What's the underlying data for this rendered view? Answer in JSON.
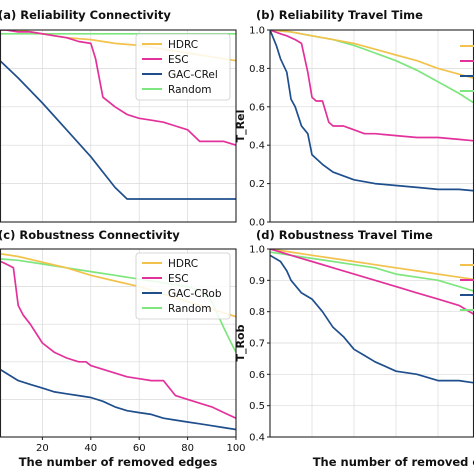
{
  "colors": {
    "HDRC": "#f2c24c",
    "ESC": "#e3319b",
    "GAC": "#1f4e8c",
    "Random": "#7ee67e"
  },
  "chart_data": [
    {
      "id": "a",
      "type": "line",
      "title": "(a) Reliability Connectivity",
      "xlabel": "",
      "ylabel": "",
      "xlim": [
        0,
        100
      ],
      "ylim": [
        0,
        1
      ],
      "grid": true,
      "legend_position": "upper-right",
      "series": [
        {
          "name": "HDRC",
          "color_key": "HDRC",
          "x": [
            0,
            10,
            20,
            30,
            40,
            50,
            60,
            70,
            80,
            90,
            100
          ],
          "y": [
            1.0,
            1.0,
            0.98,
            0.96,
            0.95,
            0.93,
            0.92,
            0.9,
            0.88,
            0.86,
            0.84
          ]
        },
        {
          "name": "ESC",
          "color_key": "ESC",
          "x": [
            0,
            5,
            10,
            15,
            20,
            25,
            30,
            35,
            40,
            42,
            45,
            50,
            55,
            60,
            65,
            70,
            75,
            80,
            85,
            90,
            95,
            100
          ],
          "y": [
            1.0,
            1.0,
            0.99,
            0.99,
            0.98,
            0.97,
            0.96,
            0.94,
            0.93,
            0.85,
            0.65,
            0.6,
            0.56,
            0.54,
            0.53,
            0.52,
            0.5,
            0.48,
            0.42,
            0.42,
            0.42,
            0.4
          ]
        },
        {
          "name": "GAC-CRel",
          "color_key": "GAC",
          "x": [
            0,
            10,
            20,
            30,
            40,
            50,
            55,
            60,
            80,
            100
          ],
          "y": [
            0.87,
            0.75,
            0.62,
            0.48,
            0.34,
            0.18,
            0.12,
            0.12,
            0.12,
            0.12
          ]
        },
        {
          "name": "Random",
          "color_key": "Random",
          "x": [
            0,
            20,
            40,
            60,
            80,
            100
          ],
          "y": [
            0.98,
            0.98,
            0.98,
            0.98,
            0.98,
            0.98
          ]
        }
      ]
    },
    {
      "id": "b",
      "type": "line",
      "title": "(b) Reliability Travel Time",
      "xlabel": "",
      "ylabel": "T_Rel",
      "xlim": [
        0,
        100
      ],
      "ylim": [
        0,
        1
      ],
      "yticks": [
        "0.0",
        "0.2",
        "0.4",
        "0.6",
        "0.8",
        "1.0"
      ],
      "grid": true,
      "series": [
        {
          "name": "HDRC",
          "color_key": "HDRC",
          "x": [
            0,
            10,
            20,
            30,
            40,
            50,
            60,
            70,
            80,
            90,
            100
          ],
          "y": [
            1.0,
            0.99,
            0.97,
            0.95,
            0.93,
            0.9,
            0.87,
            0.84,
            0.8,
            0.77,
            0.74
          ]
        },
        {
          "name": "ESC",
          "color_key": "ESC",
          "x": [
            0,
            5,
            8,
            12,
            15,
            18,
            20,
            22,
            25,
            28,
            30,
            35,
            40,
            45,
            50,
            60,
            70,
            80,
            90,
            100
          ],
          "y": [
            1.0,
            0.98,
            0.97,
            0.95,
            0.93,
            0.78,
            0.65,
            0.63,
            0.63,
            0.52,
            0.5,
            0.5,
            0.48,
            0.46,
            0.46,
            0.45,
            0.44,
            0.44,
            0.43,
            0.42
          ]
        },
        {
          "name": "GAC-CRel",
          "color_key": "GAC",
          "x": [
            0,
            3,
            5,
            8,
            10,
            12,
            15,
            18,
            20,
            25,
            30,
            35,
            40,
            50,
            60,
            70,
            80,
            90,
            100
          ],
          "y": [
            1.0,
            0.92,
            0.85,
            0.78,
            0.64,
            0.6,
            0.5,
            0.46,
            0.35,
            0.3,
            0.26,
            0.24,
            0.22,
            0.2,
            0.19,
            0.18,
            0.17,
            0.17,
            0.16
          ]
        },
        {
          "name": "Random",
          "color_key": "Random",
          "x": [
            0,
            10,
            20,
            30,
            40,
            50,
            60,
            70,
            80,
            90,
            100
          ],
          "y": [
            1.0,
            0.99,
            0.97,
            0.95,
            0.92,
            0.88,
            0.84,
            0.79,
            0.73,
            0.67,
            0.6
          ]
        }
      ]
    },
    {
      "id": "c",
      "type": "line",
      "title": "(c) Robustness Connectivity",
      "xlabel": "The number of removed edges",
      "ylabel": "",
      "xlim": [
        0,
        100
      ],
      "ylim": [
        0,
        1
      ],
      "xticks": [
        "20",
        "40",
        "60",
        "80",
        "100"
      ],
      "grid": true,
      "legend_position": "upper-right",
      "series": [
        {
          "name": "HDRC",
          "color_key": "HDRC",
          "x": [
            0,
            10,
            20,
            30,
            40,
            50,
            60,
            70,
            80,
            90,
            100
          ],
          "y": [
            0.98,
            0.96,
            0.93,
            0.9,
            0.86,
            0.83,
            0.8,
            0.76,
            0.72,
            0.68,
            0.64
          ]
        },
        {
          "name": "ESC",
          "color_key": "ESC",
          "x": [
            0,
            5,
            8,
            10,
            12,
            15,
            20,
            25,
            30,
            35,
            38,
            40,
            45,
            50,
            55,
            60,
            65,
            70,
            75,
            80,
            85,
            90,
            95,
            100
          ],
          "y": [
            0.95,
            0.92,
            0.9,
            0.7,
            0.65,
            0.6,
            0.5,
            0.45,
            0.42,
            0.4,
            0.4,
            0.38,
            0.36,
            0.34,
            0.32,
            0.31,
            0.3,
            0.3,
            0.22,
            0.2,
            0.18,
            0.16,
            0.13,
            0.1
          ]
        },
        {
          "name": "GAC-CRob",
          "color_key": "GAC",
          "x": [
            0,
            5,
            10,
            15,
            20,
            25,
            30,
            35,
            40,
            45,
            50,
            55,
            60,
            65,
            70,
            75,
            80,
            85,
            90,
            95,
            100
          ],
          "y": [
            0.38,
            0.34,
            0.3,
            0.28,
            0.26,
            0.24,
            0.23,
            0.22,
            0.21,
            0.19,
            0.16,
            0.14,
            0.13,
            0.12,
            0.1,
            0.09,
            0.08,
            0.07,
            0.06,
            0.05,
            0.04
          ]
        },
        {
          "name": "Random",
          "color_key": "Random",
          "x": [
            0,
            10,
            20,
            30,
            40,
            50,
            60,
            70,
            80,
            85,
            90,
            95,
            98,
            100
          ],
          "y": [
            0.95,
            0.94,
            0.92,
            0.9,
            0.88,
            0.86,
            0.84,
            0.82,
            0.8,
            0.78,
            0.72,
            0.58,
            0.5,
            0.45
          ]
        }
      ]
    },
    {
      "id": "d",
      "type": "line",
      "title": "(d) Robustness Travel Time",
      "xlabel": "The number of removed edges",
      "ylabel": "T_Rob",
      "xlim": [
        0,
        100
      ],
      "ylim": [
        0.4,
        1.0
      ],
      "yticks": [
        "0.4",
        "0.5",
        "0.6",
        "0.7",
        "0.8",
        "0.9",
        "1.0"
      ],
      "grid": true,
      "series": [
        {
          "name": "HDRC",
          "color_key": "HDRC",
          "x": [
            0,
            10,
            20,
            30,
            40,
            50,
            60,
            70,
            80,
            90,
            100
          ],
          "y": [
            1.0,
            0.99,
            0.98,
            0.97,
            0.96,
            0.95,
            0.94,
            0.93,
            0.92,
            0.91,
            0.9
          ]
        },
        {
          "name": "ESC",
          "color_key": "ESC",
          "x": [
            0,
            5,
            10,
            15,
            20,
            30,
            40,
            50,
            60,
            70,
            80,
            90,
            100
          ],
          "y": [
            1.0,
            0.99,
            0.98,
            0.97,
            0.96,
            0.94,
            0.92,
            0.9,
            0.88,
            0.86,
            0.84,
            0.82,
            0.78
          ]
        },
        {
          "name": "GAC-CRob",
          "color_key": "GAC",
          "x": [
            0,
            5,
            8,
            10,
            15,
            20,
            25,
            30,
            35,
            40,
            45,
            50,
            60,
            70,
            80,
            90,
            100
          ],
          "y": [
            0.98,
            0.96,
            0.93,
            0.9,
            0.86,
            0.84,
            0.8,
            0.75,
            0.72,
            0.68,
            0.66,
            0.64,
            0.61,
            0.6,
            0.58,
            0.58,
            0.57
          ]
        },
        {
          "name": "Random",
          "color_key": "Random",
          "x": [
            0,
            10,
            20,
            30,
            40,
            50,
            60,
            70,
            80,
            90,
            100
          ],
          "y": [
            0.99,
            0.98,
            0.97,
            0.96,
            0.95,
            0.94,
            0.92,
            0.91,
            0.9,
            0.88,
            0.86
          ]
        }
      ]
    }
  ]
}
